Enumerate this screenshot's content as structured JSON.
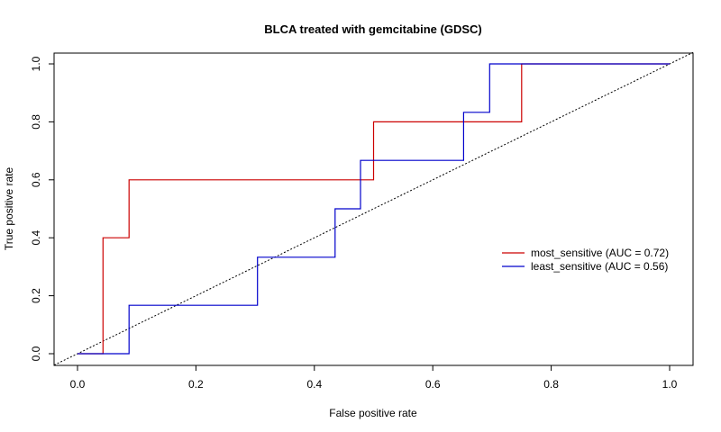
{
  "chart_data": {
    "type": "line",
    "title": "BLCA treated with gemcitabine (GDSC)",
    "xlabel": "False positive rate",
    "ylabel": "True positive rate",
    "xlim": [
      0,
      1
    ],
    "ylim": [
      0,
      1
    ],
    "x_ticks": [
      "0.0",
      "0.2",
      "0.4",
      "0.6",
      "0.8",
      "1.0"
    ],
    "y_ticks": [
      "0.0",
      "0.2",
      "0.4",
      "0.6",
      "0.8",
      "1.0"
    ],
    "grid": false,
    "legend_position": "right",
    "reference_line": {
      "x": [
        0,
        1
      ],
      "y": [
        0,
        1
      ],
      "style": "dotted",
      "color": "#000000"
    },
    "series": [
      {
        "name": "most_sensitive (AUC = 0.72)",
        "color": "#cc0000",
        "x": [
          0,
          0.043,
          0.043,
          0.087,
          0.087,
          0.5,
          0.5,
          0.75,
          0.75,
          1
        ],
        "y": [
          0,
          0,
          0.4,
          0.4,
          0.6,
          0.6,
          0.8,
          0.8,
          1,
          1
        ]
      },
      {
        "name": "least_sensitive (AUC = 0.56)",
        "color": "#0000cc",
        "x": [
          0,
          0.087,
          0.087,
          0.304,
          0.304,
          0.435,
          0.435,
          0.478,
          0.478,
          0.652,
          0.652,
          0.696,
          0.696,
          1
        ],
        "y": [
          0,
          0,
          0.167,
          0.167,
          0.333,
          0.333,
          0.5,
          0.5,
          0.667,
          0.667,
          0.833,
          0.833,
          1,
          1
        ]
      }
    ]
  }
}
